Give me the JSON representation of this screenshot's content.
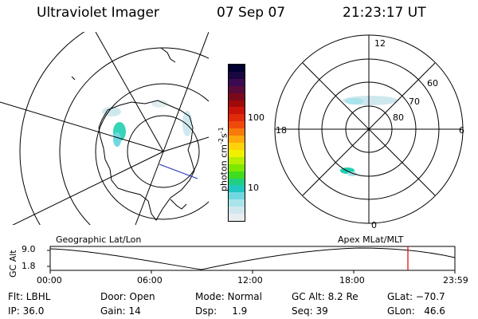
{
  "header": {
    "instrument": "Ultraviolet Imager",
    "date": "07 Sep 07",
    "time": "21:23:17 UT"
  },
  "colorbar": {
    "unit": "photon cm",
    "unit_exp1": "-2",
    "unit_mid": "s",
    "unit_exp2": "-1",
    "ticks": [
      "100",
      "10"
    ],
    "colors": [
      "#000033",
      "#1a0640",
      "#3b0a50",
      "#5a0a3a",
      "#7a0a1a",
      "#a00a0a",
      "#c8140a",
      "#e02a0a",
      "#f04a0a",
      "#f87a0a",
      "#ffaa0a",
      "#ffd20a",
      "#f0f000",
      "#b8ee00",
      "#7ee800",
      "#40dc20",
      "#20d080",
      "#20c8c0",
      "#70d8e0",
      "#a8e4ea",
      "#cfe8ee",
      "#e8eef0"
    ]
  },
  "geo_map": {
    "label": "Geographic Lat/Lon"
  },
  "polar_plot": {
    "label": "Apex  MLat/MLT",
    "mlt_labels": {
      "top": "12",
      "left": "18",
      "right": "6",
      "bottom": "0"
    },
    "lat_labels": [
      "60",
      "70",
      "80"
    ]
  },
  "altitude_plot": {
    "ylabel": "GC Alt",
    "y_ticks": [
      "9.0",
      "1.8"
    ],
    "x_ticks": [
      "00:00",
      "06:00",
      "12:00",
      "18:00",
      "23:59"
    ],
    "current_time_marker_color": "#e00000"
  },
  "info": {
    "filter": "Flt: LBHL",
    "ip": "IP: 36.0",
    "door": "Door: Open",
    "gain": "Gain: 14",
    "mode": "Mode: Normal",
    "dsp": "Dsp:     1.9",
    "gc_alt": "GC Alt: 8.2 Re",
    "seq": "Seq: 39",
    "glat": "GLat: −70.7",
    "glon": "GLon:   46.6"
  }
}
